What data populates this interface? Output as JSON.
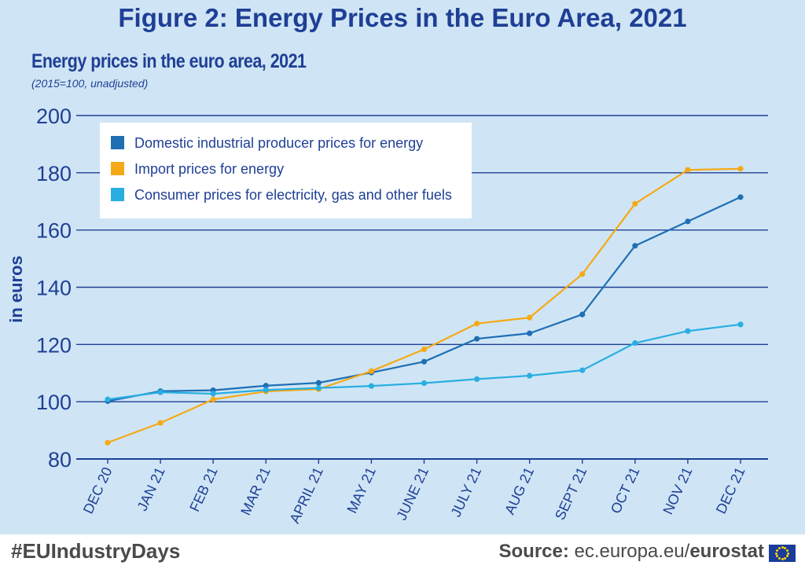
{
  "figure_title": "Figure 2: Energy Prices in the Euro Area, 2021",
  "footer": {
    "hashtag": "#EUIndustryDays",
    "source_label": "Source:",
    "source_url": "ec.europa.eu/",
    "source_brand": "eurostat"
  },
  "colors": {
    "background": "#cfe5f5",
    "title": "#1f3f95",
    "gridline": "#1f3f95",
    "domestic": "#1f6fb4",
    "import": "#f5a917",
    "consumer": "#29aee2"
  },
  "chart_data": {
    "type": "line",
    "title": "Energy prices in the euro area, 2021",
    "subtitle": "(2015=100, unadjusted)",
    "xlabel": "",
    "ylabel": "in euros",
    "ylim": [
      80,
      200
    ],
    "yticks": [
      80,
      100,
      120,
      140,
      160,
      180,
      200
    ],
    "grid": true,
    "legend_position": "top-left",
    "categories": [
      "DEC 20",
      "JAN 21",
      "FEB 21",
      "MAR 21",
      "APRIL 21",
      "MAY 21",
      "JUNE 21",
      "JULY 21",
      "AUG 21",
      "SEPT 21",
      "OCT 21",
      "NOV 21",
      "DEC 21"
    ],
    "series": [
      {
        "name": "Domestic industrial producer prices for energy",
        "color": "#1f6fb4",
        "values": [
          100.2,
          103.7,
          104.0,
          105.6,
          106.6,
          110.2,
          114.0,
          122.0,
          123.9,
          130.5,
          154.5,
          163.0,
          171.5
        ]
      },
      {
        "name": "Import prices for energy",
        "color": "#f5a917",
        "values": [
          85.7,
          92.6,
          100.8,
          103.6,
          104.4,
          110.7,
          118.3,
          127.3,
          129.4,
          144.6,
          169.2,
          181.0,
          181.4
        ]
      },
      {
        "name": "Consumer prices for electricity, gas and other fuels",
        "color": "#29aee2",
        "values": [
          100.8,
          103.3,
          102.8,
          104.1,
          104.8,
          105.5,
          106.5,
          107.9,
          109.1,
          111.0,
          120.5,
          124.7,
          127.0
        ]
      }
    ]
  }
}
